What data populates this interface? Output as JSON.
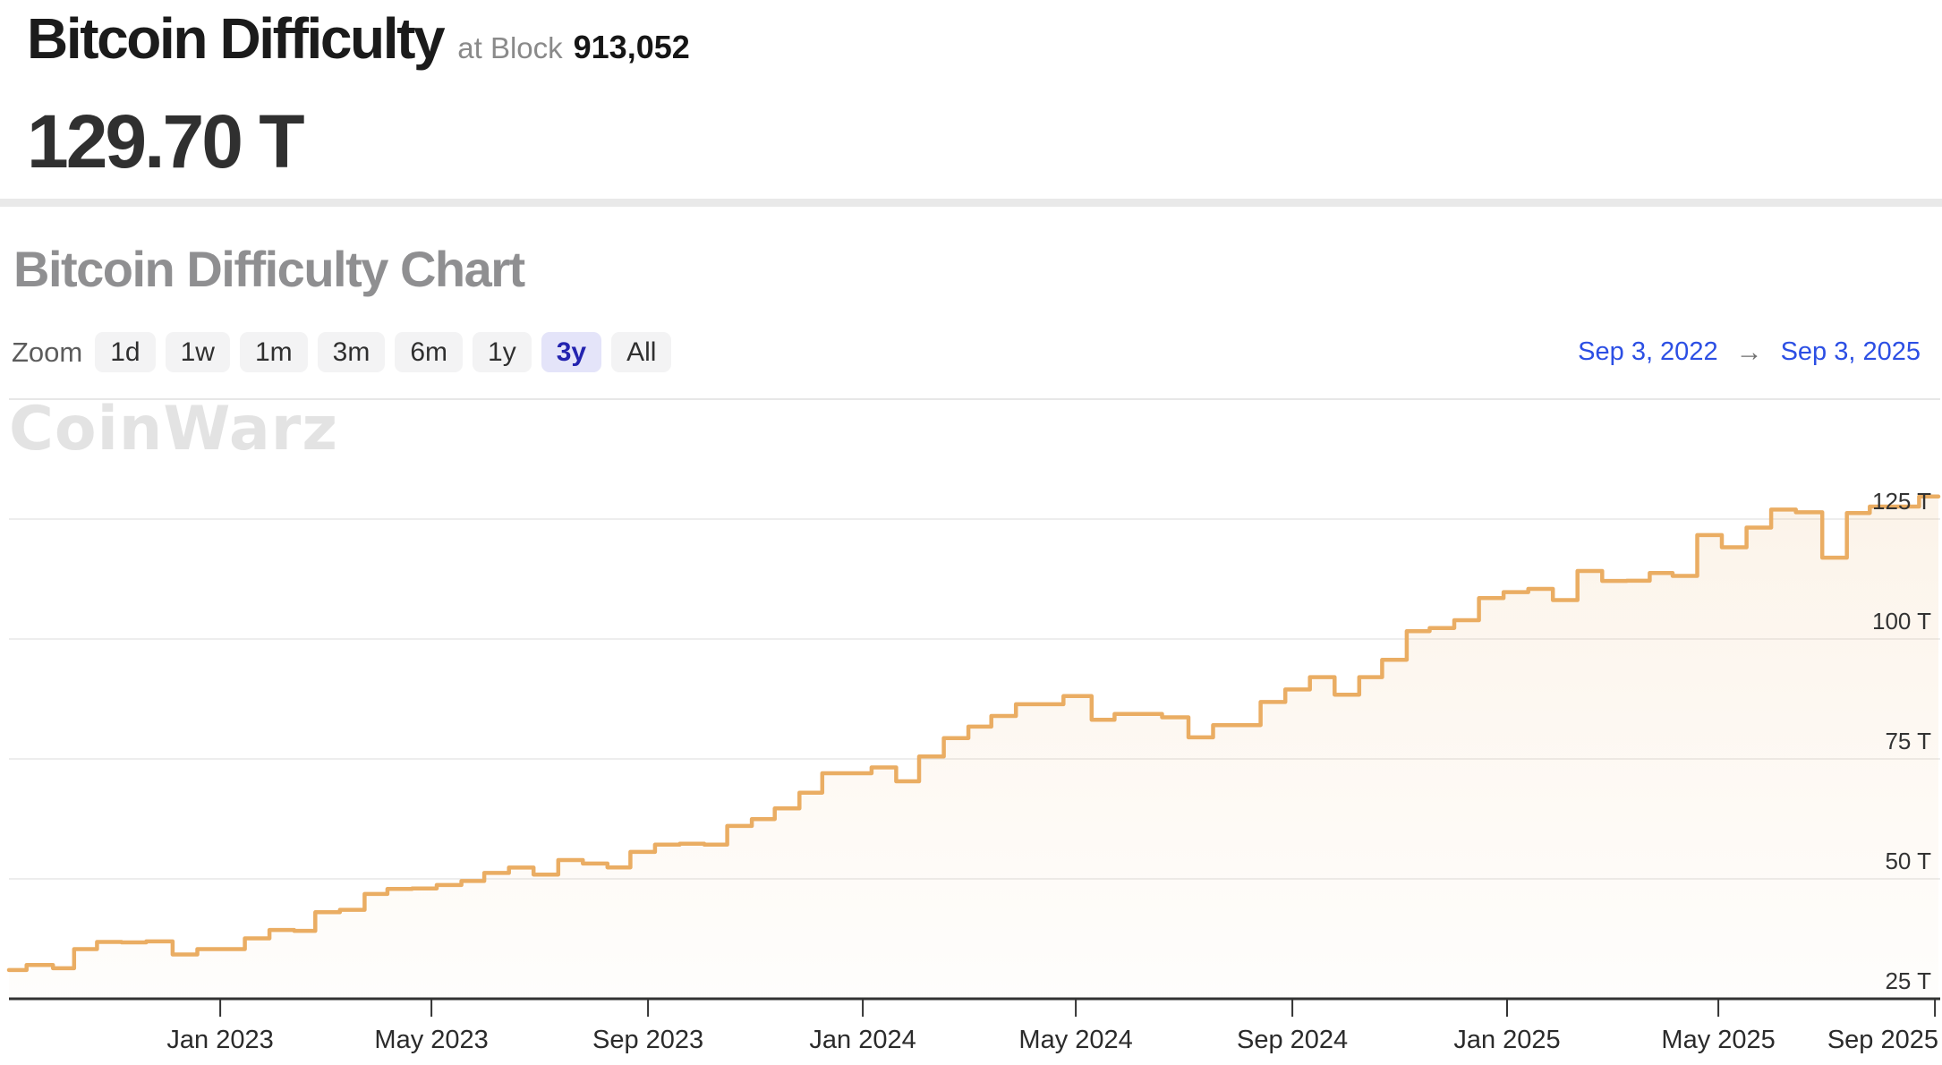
{
  "header": {
    "title": "Bitcoin Difficulty",
    "at_block_label": "at Block",
    "block_number": "913,052",
    "current_difficulty": "129.70 T"
  },
  "chart_section": {
    "heading": "Bitcoin Difficulty Chart",
    "watermark": "CoinWarz",
    "zoom": {
      "label": "Zoom",
      "options": [
        "1d",
        "1w",
        "1m",
        "3m",
        "6m",
        "1y",
        "3y",
        "All"
      ],
      "selected": "3y"
    },
    "date_range": {
      "from": "Sep 3, 2022",
      "arrow": "→",
      "to": "Sep 3, 2025"
    }
  },
  "colors": {
    "line": "#eaad63",
    "area_top": "rgba(234,173,99,0.16)",
    "area_bottom": "rgba(234,173,99,0.02)",
    "grid": "#e7e7e7",
    "axis": "#333333",
    "tick_label": "#2b2b2b",
    "y_label": "#333333",
    "divider": "#e9e9e9",
    "range_text": "#2c4fe4",
    "selected_zoom_bg": "#e4e4f9",
    "selected_zoom_text": "#2323af",
    "watermark": "#e3e3e3"
  },
  "chart_data": {
    "type": "area",
    "step": true,
    "title": "Bitcoin Difficulty Chart",
    "unit": "T",
    "x_range": [
      "2022-09-03",
      "2025-09-03"
    ],
    "y_axis": {
      "min": 25,
      "max": 150,
      "gridline_step": 25,
      "unit": "T"
    },
    "x_ticks": [
      {
        "date": "2023-01-01",
        "label": "Jan 2023"
      },
      {
        "date": "2023-05-01",
        "label": "May 2023"
      },
      {
        "date": "2023-09-01",
        "label": "Sep 2023"
      },
      {
        "date": "2024-01-01",
        "label": "Jan 2024"
      },
      {
        "date": "2024-05-01",
        "label": "May 2024"
      },
      {
        "date": "2024-09-01",
        "label": "Sep 2024"
      },
      {
        "date": "2025-01-01",
        "label": "Jan 2025"
      },
      {
        "date": "2025-05-01",
        "label": "May 2025"
      },
      {
        "date": "2025-09-01",
        "label": "Sep 2025"
      }
    ],
    "y_ticks": [
      {
        "value": 125,
        "label": "125 T",
        "gridline": true
      },
      {
        "value": 100,
        "label": "100 T",
        "gridline": true
      },
      {
        "value": 75,
        "label": "75 T",
        "gridline": true
      },
      {
        "value": 50,
        "label": "50 T",
        "gridline": true
      },
      {
        "value": 25,
        "label": "25 T",
        "gridline": false
      }
    ],
    "series": [
      {
        "name": "Bitcoin Difficulty (T)",
        "color": "#eaad63",
        "points": [
          [
            "2022-09-03",
            30.98
          ],
          [
            "2022-09-13",
            32.05
          ],
          [
            "2022-09-28",
            31.36
          ],
          [
            "2022-10-10",
            35.36
          ],
          [
            "2022-10-23",
            36.84
          ],
          [
            "2022-11-06",
            36.76
          ],
          [
            "2022-11-20",
            36.95
          ],
          [
            "2022-12-05",
            34.24
          ],
          [
            "2022-12-19",
            35.36
          ],
          [
            "2023-01-15",
            37.59
          ],
          [
            "2023-01-29",
            39.35
          ],
          [
            "2023-02-12",
            39.16
          ],
          [
            "2023-02-24",
            43.05
          ],
          [
            "2023-03-10",
            43.55
          ],
          [
            "2023-03-24",
            46.84
          ],
          [
            "2023-04-06",
            47.89
          ],
          [
            "2023-04-20",
            48.01
          ],
          [
            "2023-05-04",
            48.71
          ],
          [
            "2023-05-18",
            49.55
          ],
          [
            "2023-05-31",
            51.23
          ],
          [
            "2023-06-14",
            52.35
          ],
          [
            "2023-06-28",
            50.89
          ],
          [
            "2023-07-12",
            53.91
          ],
          [
            "2023-07-26",
            53.19
          ],
          [
            "2023-08-09",
            52.39
          ],
          [
            "2023-08-22",
            55.62
          ],
          [
            "2023-09-05",
            57.12
          ],
          [
            "2023-09-19",
            57.32
          ],
          [
            "2023-10-03",
            57.12
          ],
          [
            "2023-10-16",
            61.03
          ],
          [
            "2023-10-30",
            62.46
          ],
          [
            "2023-11-12",
            64.68
          ],
          [
            "2023-11-26",
            67.96
          ],
          [
            "2023-12-09",
            72.01
          ],
          [
            "2024-01-06",
            73.22
          ],
          [
            "2024-01-20",
            70.34
          ],
          [
            "2024-02-02",
            75.5
          ],
          [
            "2024-02-16",
            79.35
          ],
          [
            "2024-03-01",
            81.73
          ],
          [
            "2024-03-14",
            83.95
          ],
          [
            "2024-03-28",
            86.39
          ],
          [
            "2024-04-10",
            86.39
          ],
          [
            "2024-04-24",
            88.1
          ],
          [
            "2024-05-10",
            83.15
          ],
          [
            "2024-05-23",
            84.38
          ],
          [
            "2024-06-05",
            84.38
          ],
          [
            "2024-06-19",
            83.68
          ],
          [
            "2024-07-04",
            79.5
          ],
          [
            "2024-07-18",
            82.05
          ],
          [
            "2024-07-31",
            82.05
          ],
          [
            "2024-08-14",
            86.87
          ],
          [
            "2024-08-28",
            89.47
          ],
          [
            "2024-09-11",
            92.05
          ],
          [
            "2024-09-25",
            88.4
          ],
          [
            "2024-10-09",
            92.05
          ],
          [
            "2024-10-22",
            95.67
          ],
          [
            "2024-11-05",
            101.65
          ],
          [
            "2024-11-18",
            102.29
          ],
          [
            "2024-12-02",
            103.92
          ],
          [
            "2024-12-16",
            108.52
          ],
          [
            "2024-12-30",
            109.78
          ],
          [
            "2025-01-13",
            110.45
          ],
          [
            "2025-01-27",
            108.11
          ],
          [
            "2025-02-10",
            114.17
          ],
          [
            "2025-02-24",
            112.1
          ],
          [
            "2025-03-10",
            112.15
          ],
          [
            "2025-03-23",
            113.76
          ],
          [
            "2025-04-05",
            113.15
          ],
          [
            "2025-04-19",
            121.66
          ],
          [
            "2025-05-03",
            119.12
          ],
          [
            "2025-05-17",
            123.23
          ],
          [
            "2025-05-31",
            126.98
          ],
          [
            "2025-06-14",
            126.41
          ],
          [
            "2025-06-29",
            116.96
          ],
          [
            "2025-07-13",
            126.27
          ],
          [
            "2025-07-26",
            127.62
          ],
          [
            "2025-08-09",
            127.62
          ],
          [
            "2025-08-23",
            129.7
          ]
        ]
      }
    ]
  }
}
